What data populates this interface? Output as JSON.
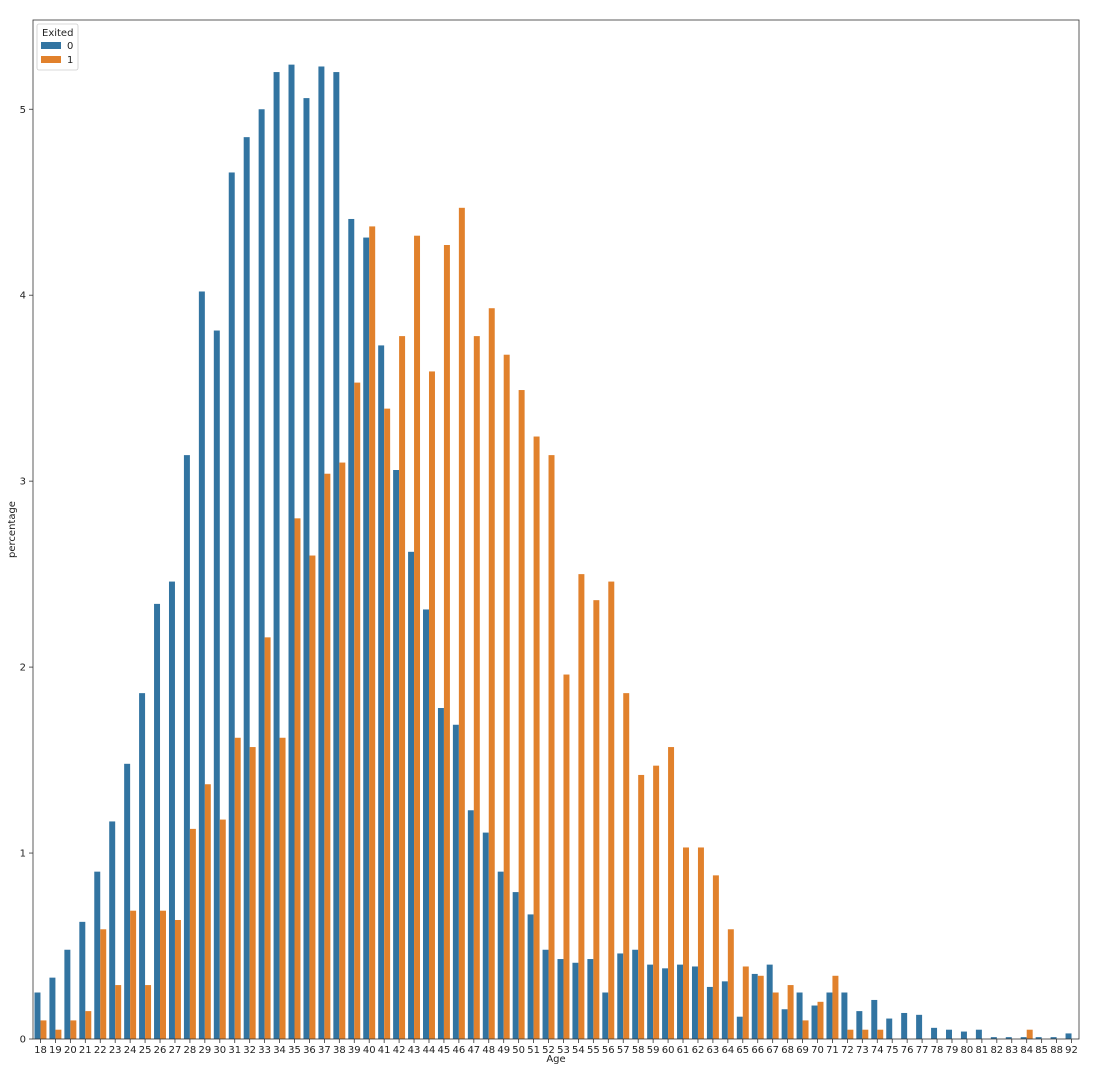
{
  "chart_data": {
    "type": "bar",
    "xlabel": "Age",
    "ylabel": "percentage",
    "ylim": [
      0,
      5.48
    ],
    "yticks": [
      0,
      1,
      2,
      3,
      4,
      5
    ],
    "grid": false,
    "legend": {
      "title": "Exited",
      "placement": "top-left"
    },
    "categories": [
      "18",
      "19",
      "20",
      "21",
      "22",
      "23",
      "24",
      "25",
      "26",
      "27",
      "28",
      "29",
      "30",
      "31",
      "32",
      "33",
      "34",
      "35",
      "36",
      "37",
      "38",
      "39",
      "40",
      "41",
      "42",
      "43",
      "44",
      "45",
      "46",
      "47",
      "48",
      "49",
      "50",
      "51",
      "52",
      "53",
      "54",
      "55",
      "56",
      "57",
      "58",
      "59",
      "60",
      "61",
      "62",
      "63",
      "64",
      "65",
      "66",
      "67",
      "68",
      "69",
      "70",
      "71",
      "72",
      "73",
      "74",
      "75",
      "76",
      "77",
      "78",
      "79",
      "80",
      "81",
      "82",
      "83",
      "84",
      "85",
      "88",
      "92"
    ],
    "series": [
      {
        "name": "0",
        "color": "#3274a1",
        "values": [
          0.25,
          0.33,
          0.48,
          0.63,
          0.9,
          1.17,
          1.48,
          1.86,
          2.34,
          2.46,
          3.14,
          4.02,
          3.81,
          4.66,
          4.85,
          5.0,
          5.2,
          5.24,
          5.06,
          5.23,
          5.2,
          4.41,
          4.31,
          3.73,
          3.06,
          2.62,
          2.31,
          1.78,
          1.69,
          1.23,
          1.11,
          0.9,
          0.79,
          0.67,
          0.48,
          0.43,
          0.41,
          0.43,
          0.25,
          0.46,
          0.48,
          0.4,
          0.38,
          0.4,
          0.39,
          0.28,
          0.31,
          0.12,
          0.35,
          0.4,
          0.16,
          0.25,
          0.18,
          0.25,
          0.25,
          0.15,
          0.21,
          0.11,
          0.14,
          0.13,
          0.06,
          0.05,
          0.04,
          0.05,
          0.01,
          0.01,
          0.01,
          0.01,
          0.01,
          0.03
        ]
      },
      {
        "name": "1",
        "color": "#e1812c",
        "values": [
          0.1,
          0.05,
          0.1,
          0.15,
          0.59,
          0.29,
          0.69,
          0.29,
          0.69,
          0.64,
          1.13,
          1.37,
          1.18,
          1.62,
          1.57,
          2.16,
          1.62,
          2.8,
          2.6,
          3.04,
          3.1,
          3.53,
          4.37,
          3.39,
          3.78,
          4.32,
          3.59,
          4.27,
          4.47,
          3.78,
          3.93,
          3.68,
          3.49,
          3.24,
          3.14,
          1.96,
          2.5,
          2.36,
          2.46,
          1.86,
          1.42,
          1.47,
          1.57,
          1.03,
          1.03,
          0.88,
          0.59,
          0.39,
          0.34,
          0.25,
          0.29,
          0.1,
          0.2,
          0.34,
          0.05,
          0.05,
          0.05,
          0,
          0,
          0,
          0,
          0,
          0,
          0,
          0,
          0,
          0.05,
          0,
          0,
          0
        ]
      }
    ]
  }
}
